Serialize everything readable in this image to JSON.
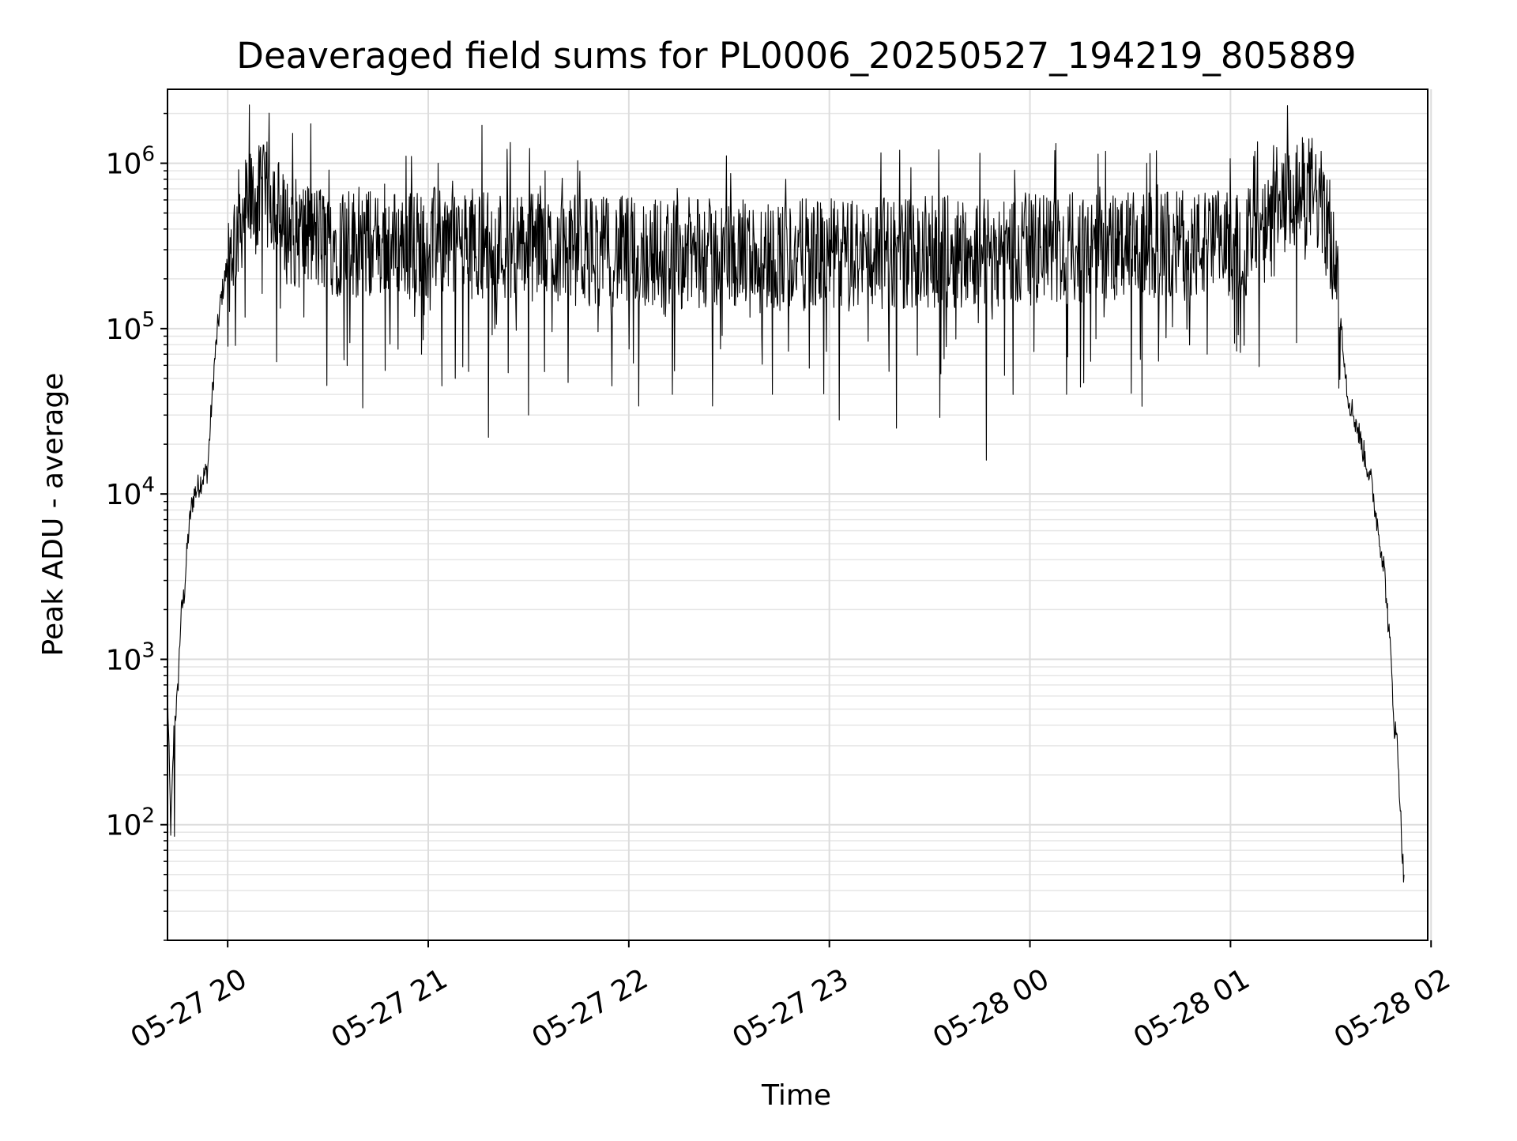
{
  "chart_data": {
    "type": "line",
    "title": "Deaveraged field sums for PL0006_20250527_194219_805889",
    "xlabel": "Time",
    "ylabel": "Peak ADU - average",
    "yscale": "log",
    "xlim": [
      "2025-05-27 19:42",
      "2025-05-28 01:59"
    ],
    "ylim": [
      20,
      2800000
    ],
    "grid": {
      "major": true,
      "minor_y": true
    },
    "x_ticks": [
      {
        "x": "2025-05-27 20:00",
        "label": "05-27 20"
      },
      {
        "x": "2025-05-27 21:00",
        "label": "05-27 21"
      },
      {
        "x": "2025-05-27 22:00",
        "label": "05-27 22"
      },
      {
        "x": "2025-05-27 23:00",
        "label": "05-27 23"
      },
      {
        "x": "2025-05-28 00:00",
        "label": "05-28 00"
      },
      {
        "x": "2025-05-28 01:00",
        "label": "05-28 01"
      },
      {
        "x": "2025-05-28 02:00",
        "label": "05-28 02"
      }
    ],
    "y_ticks": [
      {
        "value": 100,
        "base": "10",
        "exp": "2"
      },
      {
        "value": 1000,
        "base": "10",
        "exp": "3"
      },
      {
        "value": 10000,
        "base": "10",
        "exp": "4"
      },
      {
        "value": 100000,
        "base": "10",
        "exp": "5"
      },
      {
        "value": 1000000,
        "base": "10",
        "exp": "6"
      }
    ],
    "series": [
      {
        "color": "#000000",
        "points": [
          [
            "2025-05-27 19:42",
            650
          ],
          [
            "2025-05-27 19:43",
            90
          ],
          [
            "2025-05-27 19:44",
            400
          ],
          [
            "2025-05-27 19:45",
            600
          ],
          [
            "2025-05-27 19:46",
            1800
          ],
          [
            "2025-05-27 19:47",
            2500
          ],
          [
            "2025-05-27 19:48",
            5000
          ],
          [
            "2025-05-27 19:49",
            8000
          ],
          [
            "2025-05-27 19:50",
            10000
          ],
          [
            "2025-05-27 19:52",
            12000
          ],
          [
            "2025-05-27 19:54",
            14000
          ],
          [
            "2025-05-27 19:55",
            30000
          ],
          [
            "2025-05-27 19:56",
            60000
          ],
          [
            "2025-05-27 19:57",
            100000
          ],
          [
            "2025-05-27 19:58",
            150000
          ],
          [
            "2025-05-27 20:00",
            250000
          ],
          [
            "2025-05-27 20:02",
            350000
          ],
          [
            "2025-05-27 20:04",
            480000
          ],
          [
            "2025-05-27 20:06",
            550000
          ],
          [
            "2025-05-27 20:10",
            600000
          ],
          [
            "2025-05-27 20:14",
            650000
          ],
          [
            "2025-05-27 20:16",
            420000
          ],
          [
            "2025-05-27 20:20",
            380000
          ],
          [
            "2025-05-27 20:30",
            340000
          ],
          [
            "2025-05-27 20:45",
            320000
          ],
          [
            "2025-05-27 21:00",
            330000
          ],
          [
            "2025-05-27 21:15",
            330000
          ],
          [
            "2025-05-27 21:30",
            310000
          ],
          [
            "2025-05-27 22:00",
            290000
          ],
          [
            "2025-05-27 22:30",
            280000
          ],
          [
            "2025-05-27 23:00",
            280000
          ],
          [
            "2025-05-27 23:30",
            290000
          ],
          [
            "2025-05-28 00:00",
            300000
          ],
          [
            "2025-05-28 00:30",
            310000
          ],
          [
            "2025-05-28 01:00",
            320000
          ],
          [
            "2025-05-28 01:10",
            350000
          ],
          [
            "2025-05-28 01:15",
            500000
          ],
          [
            "2025-05-28 01:20",
            640000
          ],
          [
            "2025-05-28 01:24",
            700000
          ],
          [
            "2025-05-28 01:27",
            560000
          ],
          [
            "2025-05-28 01:30",
            350000
          ],
          [
            "2025-05-28 01:33",
            120000
          ],
          [
            "2025-05-28 01:35",
            40000
          ],
          [
            "2025-05-28 01:38",
            25000
          ],
          [
            "2025-05-28 01:42",
            12000
          ],
          [
            "2025-05-28 01:46",
            3500
          ],
          [
            "2025-05-28 01:48",
            1000
          ],
          [
            "2025-05-28 01:49",
            400
          ],
          [
            "2025-05-28 01:50",
            300
          ],
          [
            "2025-05-28 01:51",
            100
          ],
          [
            "2025-05-28 01:52",
            40
          ]
        ],
        "spikes": [
          [
            "2025-05-27 19:44",
            85
          ],
          [
            "2025-05-27 20:51",
            75000
          ],
          [
            "2025-05-27 20:58",
            70000
          ],
          [
            "2025-05-27 21:04",
            45000
          ],
          [
            "2025-05-27 21:08",
            50000
          ],
          [
            "2025-05-27 21:12",
            55000
          ],
          [
            "2025-05-27 21:18",
            22000
          ],
          [
            "2025-05-27 21:30",
            30000
          ],
          [
            "2025-05-27 21:55",
            45000
          ],
          [
            "2025-05-27 22:03",
            34000
          ],
          [
            "2025-05-27 22:13",
            40000
          ],
          [
            "2025-05-27 22:25",
            34000
          ],
          [
            "2025-05-27 22:43",
            40000
          ],
          [
            "2025-05-27 23:03",
            28000
          ],
          [
            "2025-05-27 23:20",
            25000
          ],
          [
            "2025-05-27 23:33",
            29000
          ],
          [
            "2025-05-27 23:47",
            16000
          ],
          [
            "2025-05-28 00:11",
            40000
          ],
          [
            "2025-05-28 00:33",
            65000
          ],
          [
            "2025-05-28 00:53",
            70000
          ]
        ],
        "peaks": [
          [
            "2025-05-27 20:55",
            1100000
          ],
          [
            "2025-05-27 21:03",
            1000000
          ],
          [
            "2025-05-27 21:16",
            1700000
          ],
          [
            "2025-05-27 21:35",
            900000
          ],
          [
            "2025-05-27 22:47",
            800000
          ],
          [
            "2025-05-27 23:45",
            1150000
          ],
          [
            "2025-05-28 00:35",
            1000000
          ],
          [
            "2025-05-28 01:07",
            1100000
          ]
        ]
      }
    ]
  }
}
